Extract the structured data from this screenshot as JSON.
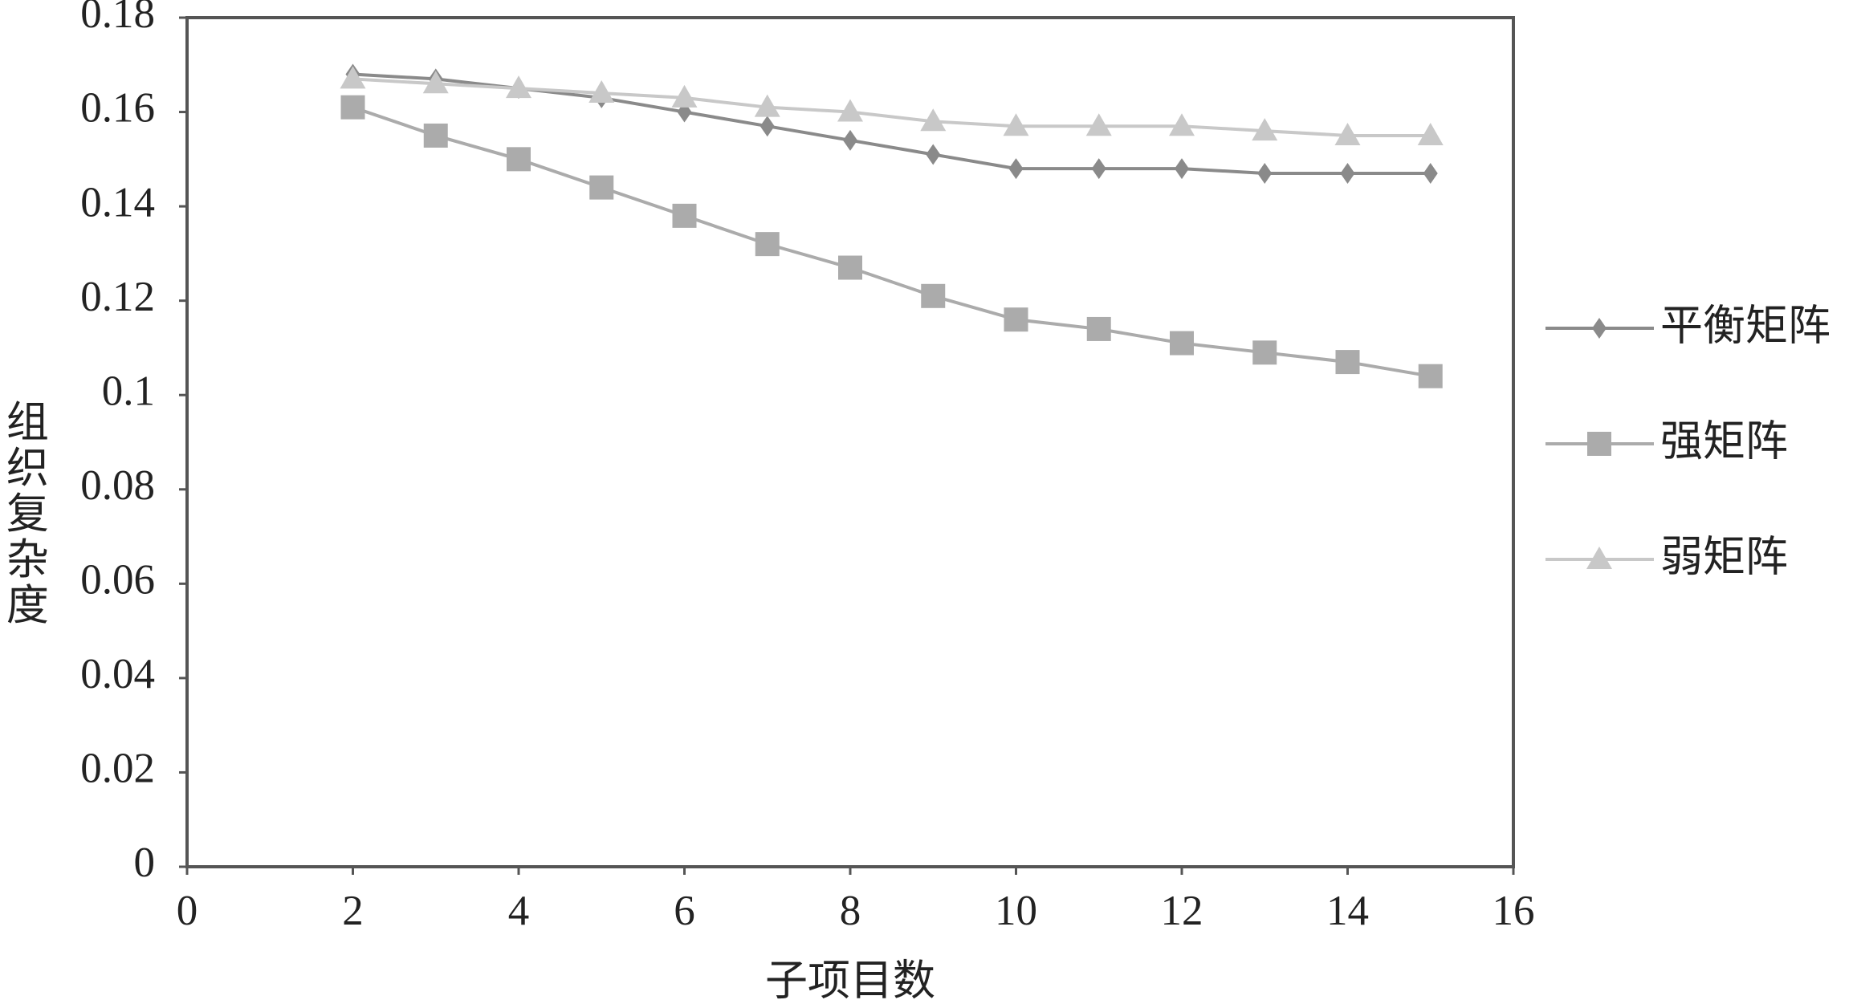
{
  "chart_data": {
    "type": "line",
    "x_label": "子项目数",
    "y_label": "组织复杂度",
    "x": [
      2,
      3,
      4,
      5,
      6,
      7,
      8,
      9,
      10,
      11,
      12,
      13,
      14,
      15
    ],
    "series": [
      {
        "name": "平衡矩阵",
        "color": "#8a8a8a",
        "marker": "diamond",
        "values": [
          0.168,
          0.167,
          0.165,
          0.163,
          0.16,
          0.157,
          0.154,
          0.151,
          0.148,
          0.148,
          0.148,
          0.147,
          0.147,
          0.147
        ]
      },
      {
        "name": "强矩阵",
        "color": "#ababab",
        "marker": "square",
        "values": [
          0.161,
          0.155,
          0.15,
          0.144,
          0.138,
          0.132,
          0.127,
          0.121,
          0.116,
          0.114,
          0.111,
          0.109,
          0.107,
          0.104
        ]
      },
      {
        "name": "弱矩阵",
        "color": "#c8c8c8",
        "marker": "triangle",
        "values": [
          0.167,
          0.166,
          0.165,
          0.164,
          0.163,
          0.161,
          0.16,
          0.158,
          0.157,
          0.157,
          0.157,
          0.156,
          0.155,
          0.155
        ]
      }
    ],
    "xlim": [
      0,
      16
    ],
    "xticks": [
      0,
      2,
      4,
      6,
      8,
      10,
      12,
      14,
      16
    ],
    "ylim": [
      0,
      0.18
    ],
    "yticks": [
      0,
      0.02,
      0.04,
      0.06,
      0.08,
      0.1,
      0.12,
      0.14,
      0.16,
      0.18
    ],
    "legend": "right"
  }
}
